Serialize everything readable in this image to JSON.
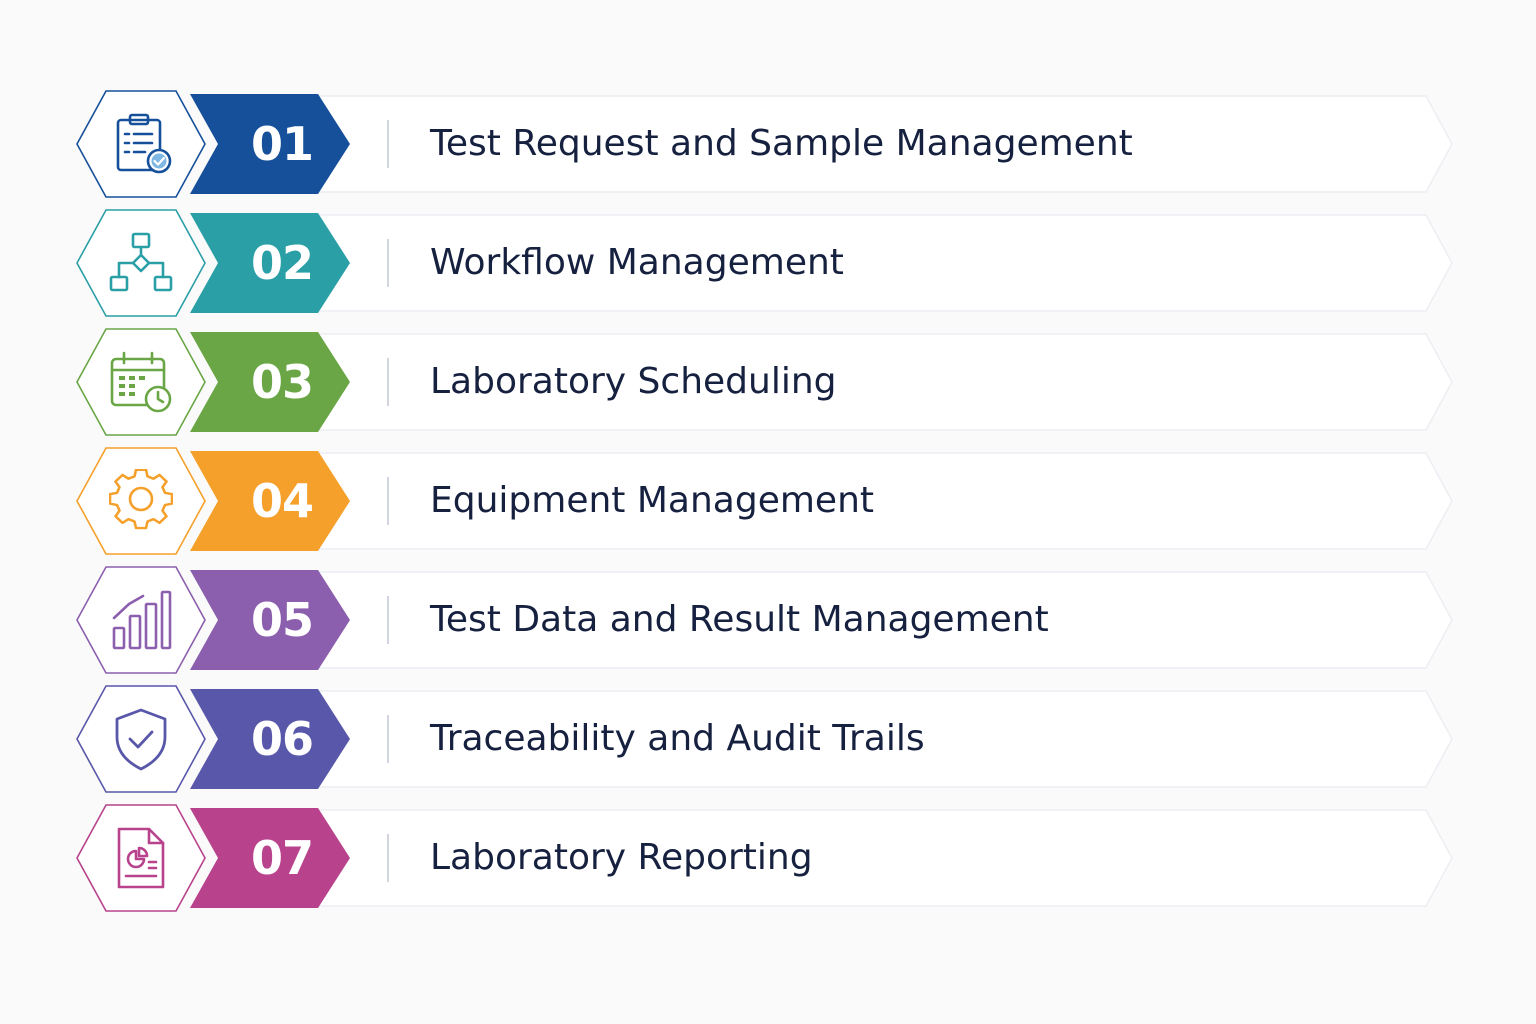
{
  "steps": [
    {
      "number": "01",
      "label": "Test Request and Sample Management",
      "color": "#16509b",
      "icon": "clipboard-check-icon"
    },
    {
      "number": "02",
      "label": "Workflow Management",
      "color": "#2a9fa6",
      "icon": "workflow-diagram-icon"
    },
    {
      "number": "03",
      "label": "Laboratory Scheduling",
      "color": "#6aa646",
      "icon": "calendar-clock-icon"
    },
    {
      "number": "04",
      "label": "Equipment Management",
      "color": "#f5a02a",
      "icon": "gear-icon"
    },
    {
      "number": "05",
      "label": "Test Data and Result Management",
      "color": "#8c5fae",
      "icon": "bar-chart-icon"
    },
    {
      "number": "06",
      "label": "Traceability and Audit Trails",
      "color": "#5957a9",
      "icon": "shield-check-icon"
    },
    {
      "number": "07",
      "label": "Laboratory Reporting",
      "color": "#b8428c",
      "icon": "report-document-icon"
    }
  ]
}
